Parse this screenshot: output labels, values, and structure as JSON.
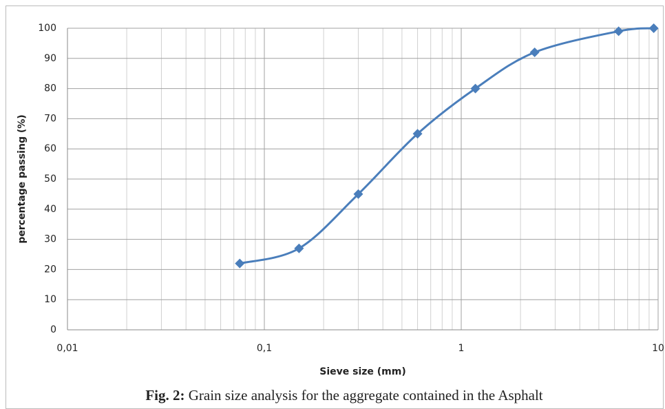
{
  "chart_data": {
    "type": "line",
    "x_label": "Sieve size (mm)",
    "y_label": "percentage passing (%)",
    "x": [
      0.075,
      0.15,
      0.3,
      0.6,
      1.18,
      2.36,
      6.3,
      9.5
    ],
    "series": [
      {
        "color": "#4a7ebb",
        "values": [
          22,
          27,
          45,
          65,
          80,
          92,
          99,
          100
        ]
      }
    ],
    "xlog": true,
    "xlim": [
      0.01,
      10
    ],
    "xticks": [
      {
        "value": 0.01,
        "label": "0,01"
      },
      {
        "value": 0.1,
        "label": "0,1"
      },
      1,
      10
    ],
    "ylim": [
      0,
      100
    ],
    "yticks": [
      0,
      10,
      20,
      30,
      40,
      50,
      60,
      70,
      80,
      90,
      100
    ],
    "grid": true
  },
  "caption": {
    "label": "Fig. 2:",
    "text": "Grain size analysis for the aggregate contained in the Asphalt"
  }
}
